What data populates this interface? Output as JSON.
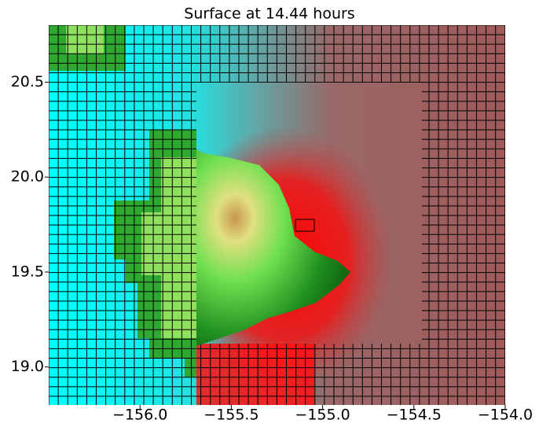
{
  "chart_data": {
    "type": "image",
    "title": "Surface at 14.44 hours",
    "xlim": [
      -156.5,
      -154.0
    ],
    "ylim": [
      18.8,
      20.8
    ],
    "xticks": [
      {
        "value": -156.0,
        "label": "−156.0"
      },
      {
        "value": -155.5,
        "label": "−155.5"
      },
      {
        "value": -155.0,
        "label": "−155.0"
      },
      {
        "value": -154.5,
        "label": "−154.5"
      },
      {
        "value": -154.0,
        "label": "−154.0"
      }
    ],
    "yticks": [
      {
        "value": 19.0,
        "label": "19.0"
      },
      {
        "value": 19.5,
        "label": "19.5"
      },
      {
        "value": 20.0,
        "label": "20.0"
      },
      {
        "value": 20.5,
        "label": "20.5"
      }
    ]
  }
}
